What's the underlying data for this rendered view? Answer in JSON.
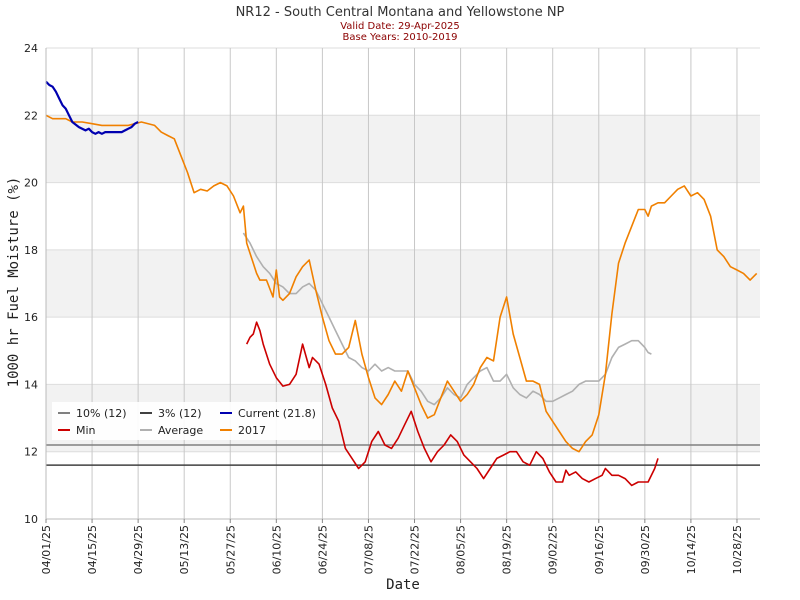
{
  "chart_data": {
    "type": "line",
    "title": "NR12 - South Central Montana and Yellowstone NP",
    "subtitle_lines": [
      "Valid Date: 29-Apr-2025",
      "Base Years: 2010-2019"
    ],
    "xlabel": "Date",
    "ylabel": "1000 hr Fuel Moisture (%)",
    "ylim": [
      10,
      24
    ],
    "yticks": [
      10,
      12,
      14,
      16,
      18,
      20,
      22,
      24
    ],
    "xlim": [
      "04/01/25",
      "11/04/25"
    ],
    "xticks": [
      "04/01/25",
      "04/15/25",
      "04/29/25",
      "05/13/25",
      "05/27/25",
      "06/10/25",
      "06/24/25",
      "07/08/25",
      "07/22/25",
      "08/05/25",
      "08/19/25",
      "09/02/25",
      "09/16/25",
      "09/30/25",
      "10/14/25",
      "10/28/25"
    ],
    "grid": true,
    "legend_position": "lower-left",
    "percentile_lines": [
      {
        "name": "10% (12)",
        "value": 12.2,
        "color": "#808080"
      },
      {
        "name": "3% (12)",
        "value": 11.6,
        "color": "#404040"
      }
    ],
    "series": [
      {
        "name": "Current (21.8)",
        "color": "#0000b0",
        "points": [
          [
            "04/01/25",
            23.0
          ],
          [
            "04/02/25",
            22.9
          ],
          [
            "04/03/25",
            22.85
          ],
          [
            "04/04/25",
            22.7
          ],
          [
            "04/05/25",
            22.5
          ],
          [
            "04/06/25",
            22.3
          ],
          [
            "04/07/25",
            22.2
          ],
          [
            "04/08/25",
            22.0
          ],
          [
            "04/09/25",
            21.8
          ],
          [
            "04/11/25",
            21.65
          ],
          [
            "04/13/25",
            21.55
          ],
          [
            "04/14/25",
            21.6
          ],
          [
            "04/15/25",
            21.5
          ],
          [
            "04/16/25",
            21.45
          ],
          [
            "04/17/25",
            21.5
          ],
          [
            "04/18/25",
            21.45
          ],
          [
            "04/19/25",
            21.5
          ],
          [
            "04/20/25",
            21.5
          ],
          [
            "04/22/25",
            21.5
          ],
          [
            "04/24/25",
            21.5
          ],
          [
            "04/25/25",
            21.55
          ],
          [
            "04/26/25",
            21.6
          ],
          [
            "04/27/25",
            21.65
          ],
          [
            "04/28/25",
            21.75
          ],
          [
            "04/29/25",
            21.8
          ]
        ]
      },
      {
        "name": "Min",
        "color": "#cc0000",
        "points": [
          [
            "06/01/25",
            15.2
          ],
          [
            "06/02/25",
            15.4
          ],
          [
            "06/03/25",
            15.5
          ],
          [
            "06/04/25",
            15.85
          ],
          [
            "06/05/25",
            15.6
          ],
          [
            "06/06/25",
            15.2
          ],
          [
            "06/08/25",
            14.6
          ],
          [
            "06/10/25",
            14.2
          ],
          [
            "06/12/25",
            13.95
          ],
          [
            "06/14/25",
            14.0
          ],
          [
            "06/16/25",
            14.3
          ],
          [
            "06/18/25",
            15.2
          ],
          [
            "06/20/25",
            14.5
          ],
          [
            "06/21/25",
            14.8
          ],
          [
            "06/23/25",
            14.6
          ],
          [
            "06/25/25",
            14.0
          ],
          [
            "06/27/25",
            13.3
          ],
          [
            "06/29/25",
            12.9
          ],
          [
            "07/01/25",
            12.1
          ],
          [
            "07/03/25",
            11.8
          ],
          [
            "07/05/25",
            11.5
          ],
          [
            "07/07/25",
            11.7
          ],
          [
            "07/09/25",
            12.3
          ],
          [
            "07/11/25",
            12.6
          ],
          [
            "07/13/25",
            12.2
          ],
          [
            "07/15/25",
            12.1
          ],
          [
            "07/17/25",
            12.4
          ],
          [
            "07/19/25",
            12.8
          ],
          [
            "07/21/25",
            13.2
          ],
          [
            "07/23/25",
            12.6
          ],
          [
            "07/25/25",
            12.1
          ],
          [
            "07/27/25",
            11.7
          ],
          [
            "07/29/25",
            12.0
          ],
          [
            "07/31/25",
            12.2
          ],
          [
            "08/02/25",
            12.5
          ],
          [
            "08/04/25",
            12.3
          ],
          [
            "08/06/25",
            11.9
          ],
          [
            "08/08/25",
            11.7
          ],
          [
            "08/10/25",
            11.5
          ],
          [
            "08/12/25",
            11.2
          ],
          [
            "08/14/25",
            11.5
          ],
          [
            "08/16/25",
            11.8
          ],
          [
            "08/18/25",
            11.9
          ],
          [
            "08/20/25",
            12.0
          ],
          [
            "08/22/25",
            12.0
          ],
          [
            "08/24/25",
            11.7
          ],
          [
            "08/26/25",
            11.6
          ],
          [
            "08/28/25",
            12.0
          ],
          [
            "08/30/25",
            11.8
          ],
          [
            "09/01/25",
            11.4
          ],
          [
            "09/03/25",
            11.1
          ],
          [
            "09/05/25",
            11.1
          ],
          [
            "09/06/25",
            11.45
          ],
          [
            "09/07/25",
            11.3
          ],
          [
            "09/09/25",
            11.4
          ],
          [
            "09/11/25",
            11.2
          ],
          [
            "09/13/25",
            11.1
          ],
          [
            "09/15/25",
            11.2
          ],
          [
            "09/17/25",
            11.3
          ],
          [
            "09/18/25",
            11.5
          ],
          [
            "09/20/25",
            11.3
          ],
          [
            "09/22/25",
            11.3
          ],
          [
            "09/24/25",
            11.2
          ],
          [
            "09/26/25",
            11.0
          ],
          [
            "09/28/25",
            11.1
          ],
          [
            "10/01/25",
            11.1
          ],
          [
            "10/03/25",
            11.5
          ],
          [
            "10/04/25",
            11.8
          ]
        ]
      },
      {
        "name": "Average",
        "color": "#b0b0b0",
        "points": [
          [
            "05/31/25",
            18.5
          ],
          [
            "06/02/25",
            18.2
          ],
          [
            "06/04/25",
            17.8
          ],
          [
            "06/06/25",
            17.5
          ],
          [
            "06/08/25",
            17.3
          ],
          [
            "06/10/25",
            17.0
          ],
          [
            "06/12/25",
            16.9
          ],
          [
            "06/14/25",
            16.7
          ],
          [
            "06/16/25",
            16.7
          ],
          [
            "06/18/25",
            16.9
          ],
          [
            "06/20/25",
            17.0
          ],
          [
            "06/22/25",
            16.8
          ],
          [
            "06/24/25",
            16.4
          ],
          [
            "06/26/25",
            16.0
          ],
          [
            "06/28/25",
            15.6
          ],
          [
            "06/30/25",
            15.2
          ],
          [
            "07/02/25",
            14.8
          ],
          [
            "07/04/25",
            14.7
          ],
          [
            "07/06/25",
            14.5
          ],
          [
            "07/08/25",
            14.4
          ],
          [
            "07/10/25",
            14.6
          ],
          [
            "07/12/25",
            14.4
          ],
          [
            "07/14/25",
            14.5
          ],
          [
            "07/16/25",
            14.4
          ],
          [
            "07/18/25",
            14.4
          ],
          [
            "07/20/25",
            14.4
          ],
          [
            "07/22/25",
            14.0
          ],
          [
            "07/24/25",
            13.8
          ],
          [
            "07/26/25",
            13.5
          ],
          [
            "07/28/25",
            13.4
          ],
          [
            "07/30/25",
            13.6
          ],
          [
            "08/01/25",
            13.9
          ],
          [
            "08/03/25",
            13.7
          ],
          [
            "08/05/25",
            13.6
          ],
          [
            "08/07/25",
            14.0
          ],
          [
            "08/09/25",
            14.2
          ],
          [
            "08/11/25",
            14.4
          ],
          [
            "08/13/25",
            14.5
          ],
          [
            "08/15/25",
            14.1
          ],
          [
            "08/17/25",
            14.1
          ],
          [
            "08/19/25",
            14.3
          ],
          [
            "08/21/25",
            13.9
          ],
          [
            "08/23/25",
            13.7
          ],
          [
            "08/25/25",
            13.6
          ],
          [
            "08/27/25",
            13.8
          ],
          [
            "08/29/25",
            13.7
          ],
          [
            "08/31/25",
            13.5
          ],
          [
            "09/02/25",
            13.5
          ],
          [
            "09/04/25",
            13.6
          ],
          [
            "09/06/25",
            13.7
          ],
          [
            "09/08/25",
            13.8
          ],
          [
            "09/10/25",
            14.0
          ],
          [
            "09/12/25",
            14.1
          ],
          [
            "09/14/25",
            14.1
          ],
          [
            "09/16/25",
            14.1
          ],
          [
            "09/18/25",
            14.3
          ],
          [
            "09/20/25",
            14.8
          ],
          [
            "09/22/25",
            15.1
          ],
          [
            "09/24/25",
            15.2
          ],
          [
            "09/26/25",
            15.3
          ],
          [
            "09/28/25",
            15.3
          ],
          [
            "09/30/25",
            15.1
          ],
          [
            "10/01/25",
            14.95
          ],
          [
            "10/02/25",
            14.9
          ]
        ]
      },
      {
        "name": "2017",
        "color": "#f08000",
        "points": [
          [
            "04/01/25",
            22.0
          ],
          [
            "04/03/25",
            21.9
          ],
          [
            "04/05/25",
            21.9
          ],
          [
            "04/07/25",
            21.9
          ],
          [
            "04/09/25",
            21.8
          ],
          [
            "04/12/25",
            21.8
          ],
          [
            "04/15/25",
            21.75
          ],
          [
            "04/18/25",
            21.7
          ],
          [
            "04/22/25",
            21.7
          ],
          [
            "04/26/25",
            21.7
          ],
          [
            "04/28/25",
            21.75
          ],
          [
            "04/30/25",
            21.8
          ],
          [
            "05/04/25",
            21.7
          ],
          [
            "05/06/25",
            21.5
          ],
          [
            "05/08/25",
            21.4
          ],
          [
            "05/10/25",
            21.3
          ],
          [
            "05/12/25",
            20.8
          ],
          [
            "05/14/25",
            20.3
          ],
          [
            "05/16/25",
            19.7
          ],
          [
            "05/18/25",
            19.8
          ],
          [
            "05/20/25",
            19.75
          ],
          [
            "05/22/25",
            19.9
          ],
          [
            "05/24/25",
            20.0
          ],
          [
            "05/26/25",
            19.9
          ],
          [
            "05/28/25",
            19.6
          ],
          [
            "05/30/25",
            19.1
          ],
          [
            "05/31/25",
            19.3
          ],
          [
            "06/01/25",
            18.2
          ],
          [
            "06/03/25",
            17.6
          ],
          [
            "06/04/25",
            17.3
          ],
          [
            "06/05/25",
            17.1
          ],
          [
            "06/07/25",
            17.1
          ],
          [
            "06/09/25",
            16.6
          ],
          [
            "06/10/25",
            17.4
          ],
          [
            "06/11/25",
            16.6
          ],
          [
            "06/12/25",
            16.5
          ],
          [
            "06/14/25",
            16.7
          ],
          [
            "06/16/25",
            17.2
          ],
          [
            "06/18/25",
            17.5
          ],
          [
            "06/20/25",
            17.7
          ],
          [
            "06/22/25",
            16.8
          ],
          [
            "06/24/25",
            16.0
          ],
          [
            "06/26/25",
            15.3
          ],
          [
            "06/28/25",
            14.9
          ],
          [
            "06/30/25",
            14.9
          ],
          [
            "07/02/25",
            15.1
          ],
          [
            "07/04/25",
            15.9
          ],
          [
            "07/06/25",
            14.9
          ],
          [
            "07/08/25",
            14.2
          ],
          [
            "07/10/25",
            13.6
          ],
          [
            "07/12/25",
            13.4
          ],
          [
            "07/14/25",
            13.7
          ],
          [
            "07/16/25",
            14.1
          ],
          [
            "07/18/25",
            13.8
          ],
          [
            "07/20/25",
            14.4
          ],
          [
            "07/22/25",
            13.9
          ],
          [
            "07/24/25",
            13.4
          ],
          [
            "07/26/25",
            13.0
          ],
          [
            "07/28/25",
            13.1
          ],
          [
            "07/30/25",
            13.6
          ],
          [
            "08/01/25",
            14.1
          ],
          [
            "08/03/25",
            13.8
          ],
          [
            "08/05/25",
            13.5
          ],
          [
            "08/07/25",
            13.7
          ],
          [
            "08/09/25",
            14.0
          ],
          [
            "08/11/25",
            14.5
          ],
          [
            "08/13/25",
            14.8
          ],
          [
            "08/15/25",
            14.7
          ],
          [
            "08/17/25",
            16.0
          ],
          [
            "08/19/25",
            16.6
          ],
          [
            "08/21/25",
            15.5
          ],
          [
            "08/23/25",
            14.8
          ],
          [
            "08/25/25",
            14.1
          ],
          [
            "08/27/25",
            14.1
          ],
          [
            "08/29/25",
            14.0
          ],
          [
            "08/31/25",
            13.2
          ],
          [
            "09/02/25",
            12.9
          ],
          [
            "09/04/25",
            12.6
          ],
          [
            "09/06/25",
            12.3
          ],
          [
            "09/08/25",
            12.1
          ],
          [
            "09/10/25",
            12.0
          ],
          [
            "09/12/25",
            12.3
          ],
          [
            "09/14/25",
            12.5
          ],
          [
            "09/16/25",
            13.1
          ],
          [
            "09/18/25",
            14.3
          ],
          [
            "09/20/25",
            16.1
          ],
          [
            "09/22/25",
            17.6
          ],
          [
            "09/24/25",
            18.2
          ],
          [
            "09/26/25",
            18.7
          ],
          [
            "09/28/25",
            19.2
          ],
          [
            "09/30/25",
            19.2
          ],
          [
            "10/01/25",
            19.0
          ],
          [
            "10/02/25",
            19.3
          ],
          [
            "10/04/25",
            19.4
          ],
          [
            "10/06/25",
            19.4
          ],
          [
            "10/08/25",
            19.6
          ],
          [
            "10/10/25",
            19.8
          ],
          [
            "10/12/25",
            19.9
          ],
          [
            "10/14/25",
            19.6
          ],
          [
            "10/16/25",
            19.7
          ],
          [
            "10/18/25",
            19.5
          ],
          [
            "10/20/25",
            19.0
          ],
          [
            "10/22/25",
            18.0
          ],
          [
            "10/24/25",
            17.8
          ],
          [
            "10/26/25",
            17.5
          ],
          [
            "10/28/25",
            17.4
          ],
          [
            "10/30/25",
            17.3
          ],
          [
            "11/01/25",
            17.1
          ],
          [
            "11/03/25",
            17.3
          ]
        ]
      }
    ]
  }
}
